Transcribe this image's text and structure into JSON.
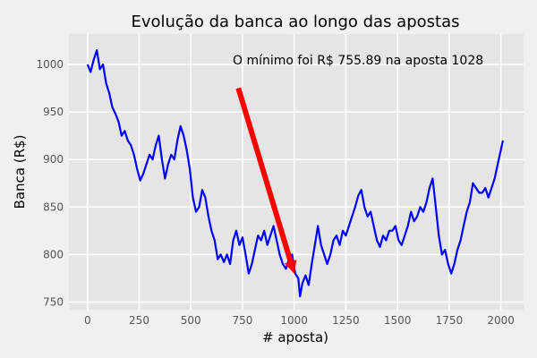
{
  "chart_data": {
    "type": "line",
    "title": "Evolução da banca ao longo das apostas",
    "xlabel": "# aposta)",
    "ylabel": "Banca (R$)",
    "xlim": [
      -90,
      2110
    ],
    "ylim": [
      742,
      1032
    ],
    "xticks": [
      0,
      250,
      500,
      750,
      1000,
      1250,
      1500,
      1750,
      2000
    ],
    "yticks": [
      750,
      800,
      850,
      900,
      950,
      1000
    ],
    "grid": true,
    "series": [
      {
        "color": "#0000ff",
        "x": [
          0,
          15,
          30,
          45,
          60,
          75,
          90,
          105,
          120,
          135,
          150,
          165,
          180,
          195,
          210,
          225,
          240,
          255,
          270,
          285,
          300,
          315,
          330,
          345,
          360,
          375,
          390,
          405,
          420,
          435,
          450,
          465,
          480,
          495,
          510,
          525,
          540,
          555,
          570,
          585,
          600,
          615,
          630,
          645,
          660,
          675,
          690,
          705,
          720,
          735,
          750,
          765,
          780,
          795,
          810,
          825,
          840,
          855,
          870,
          885,
          900,
          915,
          930,
          945,
          960,
          975,
          990,
          1005,
          1020,
          1028,
          1040,
          1055,
          1070,
          1085,
          1100,
          1115,
          1130,
          1145,
          1160,
          1175,
          1190,
          1205,
          1220,
          1235,
          1250,
          1265,
          1280,
          1295,
          1310,
          1325,
          1340,
          1355,
          1370,
          1385,
          1400,
          1415,
          1430,
          1445,
          1460,
          1475,
          1490,
          1505,
          1520,
          1535,
          1550,
          1565,
          1580,
          1595,
          1610,
          1625,
          1640,
          1655,
          1670,
          1685,
          1700,
          1715,
          1730,
          1745,
          1760,
          1775,
          1790,
          1805,
          1820,
          1835,
          1850,
          1865,
          1880,
          1895,
          1910,
          1925,
          1940,
          1955,
          1970,
          1985,
          2000,
          2010
        ],
        "y": [
          1000,
          992,
          1005,
          1015,
          995,
          1000,
          980,
          970,
          955,
          948,
          940,
          925,
          930,
          920,
          915,
          905,
          890,
          878,
          885,
          895,
          905,
          900,
          915,
          925,
          900,
          880,
          895,
          905,
          900,
          920,
          935,
          925,
          910,
          890,
          860,
          845,
          850,
          868,
          860,
          840,
          825,
          815,
          795,
          800,
          792,
          800,
          790,
          815,
          825,
          810,
          818,
          800,
          780,
          790,
          805,
          820,
          815,
          825,
          810,
          820,
          830,
          815,
          800,
          790,
          785,
          795,
          800,
          780,
          775,
          755.89,
          770,
          778,
          768,
          790,
          810,
          830,
          810,
          800,
          790,
          800,
          815,
          820,
          810,
          825,
          820,
          830,
          840,
          850,
          862,
          868,
          850,
          840,
          845,
          830,
          815,
          808,
          820,
          815,
          825,
          825,
          830,
          815,
          810,
          820,
          830,
          845,
          835,
          840,
          850,
          845,
          855,
          870,
          880,
          850,
          820,
          800,
          805,
          790,
          780,
          790,
          805,
          815,
          830,
          845,
          855,
          875,
          870,
          865,
          865,
          870,
          860,
          870,
          880,
          895,
          910,
          920
        ]
      }
    ],
    "annotation": {
      "text": "O mínimo foi R$ 755.89 na aposta 1028",
      "arrow_color": "#ff0000",
      "arrow_start": [
        730,
        975
      ],
      "arrow_end": [
        1000,
        780
      ]
    }
  }
}
